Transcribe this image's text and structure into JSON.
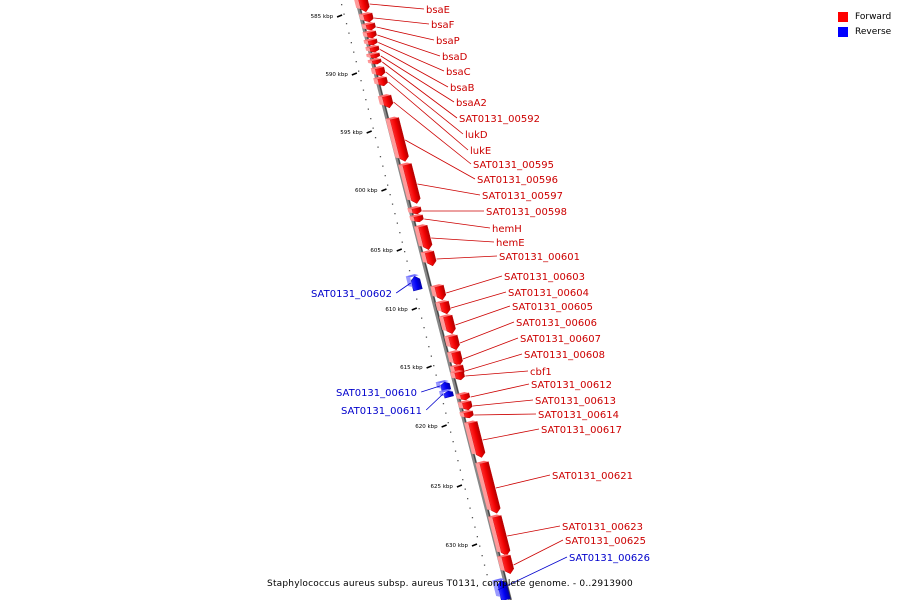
{
  "caption": "Staphylococcus aureus subsp. aureus T0131, complete genome. - 0..2913900",
  "legend": {
    "forward_label": "Forward",
    "reverse_label": "Reverse",
    "forward_color": "#ff0000",
    "reverse_color": "#0000ff"
  },
  "scale_ticks": [
    "585 kbp",
    "590 kbp",
    "595 kbp",
    "600 kbp",
    "605 kbp",
    "610 kbp",
    "615 kbp",
    "620 kbp",
    "625 kbp",
    "630 kbp"
  ],
  "genes": [
    {
      "name": "bsaE",
      "strand": "forward"
    },
    {
      "name": "bsaF",
      "strand": "forward"
    },
    {
      "name": "bsaP",
      "strand": "forward"
    },
    {
      "name": "bsaD",
      "strand": "forward"
    },
    {
      "name": "bsaC",
      "strand": "forward"
    },
    {
      "name": "bsaB",
      "strand": "forward"
    },
    {
      "name": "bsaA2",
      "strand": "forward"
    },
    {
      "name": "SAT0131_00592",
      "strand": "forward"
    },
    {
      "name": "lukD",
      "strand": "forward"
    },
    {
      "name": "lukE",
      "strand": "forward"
    },
    {
      "name": "SAT0131_00595",
      "strand": "forward"
    },
    {
      "name": "SAT0131_00596",
      "strand": "forward"
    },
    {
      "name": "SAT0131_00597",
      "strand": "forward"
    },
    {
      "name": "SAT0131_00598",
      "strand": "forward"
    },
    {
      "name": "hemH",
      "strand": "forward"
    },
    {
      "name": "hemE",
      "strand": "forward"
    },
    {
      "name": "SAT0131_00601",
      "strand": "forward"
    },
    {
      "name": "SAT0131_00602",
      "strand": "reverse"
    },
    {
      "name": "SAT0131_00603",
      "strand": "forward"
    },
    {
      "name": "SAT0131_00604",
      "strand": "forward"
    },
    {
      "name": "SAT0131_00605",
      "strand": "forward"
    },
    {
      "name": "SAT0131_00606",
      "strand": "forward"
    },
    {
      "name": "SAT0131_00607",
      "strand": "forward"
    },
    {
      "name": "SAT0131_00608",
      "strand": "forward"
    },
    {
      "name": "cbf1",
      "strand": "forward"
    },
    {
      "name": "SAT0131_00610",
      "strand": "reverse"
    },
    {
      "name": "SAT0131_00611",
      "strand": "reverse"
    },
    {
      "name": "SAT0131_00612",
      "strand": "forward"
    },
    {
      "name": "SAT0131_00613",
      "strand": "forward"
    },
    {
      "name": "SAT0131_00614",
      "strand": "forward"
    },
    {
      "name": "SAT0131_00617",
      "strand": "forward"
    },
    {
      "name": "SAT0131_00621",
      "strand": "forward"
    },
    {
      "name": "SAT0131_00623",
      "strand": "forward"
    },
    {
      "name": "SAT0131_00625",
      "strand": "forward"
    },
    {
      "name": "SAT0131_00626",
      "strand": "reverse"
    }
  ]
}
